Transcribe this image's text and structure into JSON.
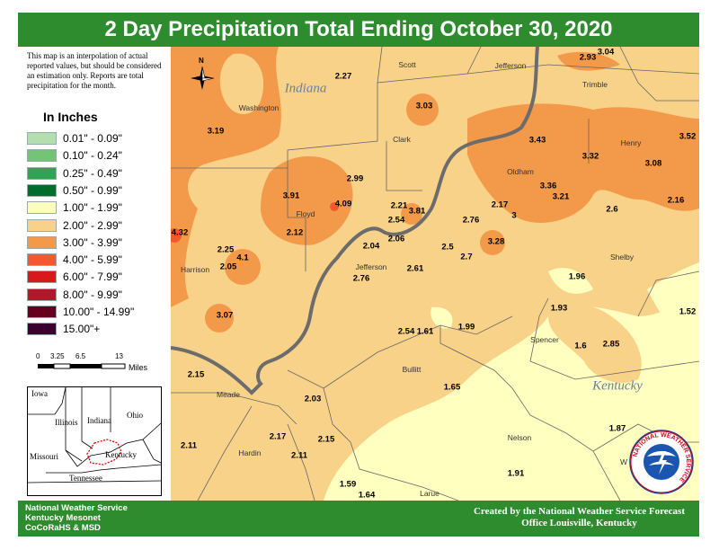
{
  "title": "2 Day Precipitation Total Ending October 30, 2020",
  "disclaimer": "This map is an interpolation of actual reported values, but should be considered an estimation only. Reports are total precipitation for the month.",
  "legend": {
    "title": "In Inches",
    "items": [
      {
        "label": "0.01\" - 0.09\"",
        "color": "#b3dfb0"
      },
      {
        "label": "0.10\" - 0.24\"",
        "color": "#74c476"
      },
      {
        "label": "0.25\" - 0.49\"",
        "color": "#31a354"
      },
      {
        "label": "0.50\" - 0.99\"",
        "color": "#006d2c"
      },
      {
        "label": "1.00\" - 1.99\"",
        "color": "#ffffc0"
      },
      {
        "label": "2.00\" - 2.99\"",
        "color": "#f9d28a"
      },
      {
        "label": "3.00\" - 3.99\"",
        "color": "#f39a4a"
      },
      {
        "label": "4.00\" - 5.99\"",
        "color": "#f15a2e"
      },
      {
        "label": "6.00\" - 7.99\"",
        "color": "#d7191c"
      },
      {
        "label": "8.00\" - 9.99\"",
        "color": "#b2182b"
      },
      {
        "label": "10.00\" - 14.99\"",
        "color": "#67001f"
      },
      {
        "label": "15.00\"+",
        "color": "#3b0030"
      }
    ]
  },
  "scalebar": {
    "ticks": [
      "0",
      "3.25",
      "6.5",
      "13"
    ],
    "units": "Miles"
  },
  "north_label": "N",
  "inset_states": {
    "iowa": "Iowa",
    "illinois": "Illinois",
    "indiana": "Indiana",
    "ohio": "Ohio",
    "missouri": "Missouri",
    "kentucky": "Kentucky",
    "tennessee": "Tennessee"
  },
  "state_labels": {
    "indiana": "Indiana",
    "kentucky": "Kentucky"
  },
  "counties": {
    "scott": "Scott",
    "jefferson_in": "Jefferson",
    "trimble": "Trimble",
    "washington": "Washington",
    "clark": "Clark",
    "henry": "Henry",
    "oldham": "Oldham",
    "floyd": "Floyd",
    "harrison": "Harrison",
    "jefferson_ky": "Jefferson",
    "shelby": "Shelby",
    "spencer": "Spencer",
    "bullitt": "Bullitt",
    "meade": "Meade",
    "hardin": "Hardin",
    "nelson": "Nelson",
    "larue": "Larue",
    "washington_ky": "W"
  },
  "values": {
    "v1": "2.27",
    "v2": "2.93",
    "v3": "3.04",
    "v4": "3.19",
    "v5": "3.03",
    "v6": "3.43",
    "v7": "3.52",
    "v8": "3.32",
    "v9": "3.08",
    "v10": "2.99",
    "v11": "3.91",
    "v12": "4.09",
    "v13": "2.21",
    "v14": "3.81",
    "v15": "2.54",
    "v16": "2.17",
    "v17": "3",
    "v18": "2.76",
    "v19": "3.36",
    "v20": "3.21",
    "v21": "2.16",
    "v22": "2.6",
    "v23": "4.32",
    "v24": "2.12",
    "v25": "2.04",
    "v26": "2.06",
    "v27": "2.5",
    "v28": "3.28",
    "v29": "2.25",
    "v30": "4.1",
    "v31": "2.05",
    "v32": "2.7",
    "v33": "2.61",
    "v34": "2.76",
    "v35": "1.96",
    "v36": "1.93",
    "v37": "1.52",
    "v38": "3.07",
    "v39": "2.54",
    "v40": "1.61",
    "v41": "1.99",
    "v42": "1.6",
    "v43": "2.85",
    "v44": "2.15",
    "v45": "1.65",
    "v46": "2.03",
    "v47": "2.17",
    "v48": "2.15",
    "v49": "2.11",
    "v50": "2.11",
    "v51": "1.87",
    "v52": "1.59",
    "v53": "1.64",
    "v54": "1.91"
  },
  "footer": {
    "left": [
      "National Weather Service",
      "Kentucky Mesonet",
      "CoCoRaHS & MSD"
    ],
    "right": [
      "Created by the National Weather Service Forecast",
      "Office Louisville, Kentucky"
    ]
  },
  "logo_text": "NATIONAL WEATHER SERVICE"
}
